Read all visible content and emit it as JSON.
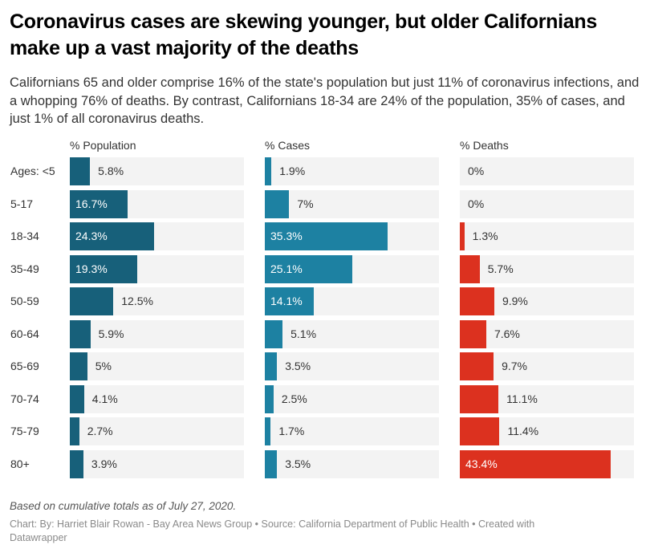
{
  "header": {
    "title": "Coronavirus cases are skewing younger, but older Californians make up a vast majority of the deaths",
    "subtitle": "Californians 65 and older comprise 16% of the state's population but just 11% of coronavirus infections, and a whopping 76% of deaths. By contrast, Californians 18-34 are 24% of the population, 35% of cases, and just 1% of all coronavirus deaths."
  },
  "chart_data": {
    "type": "bar",
    "orientation": "horizontal",
    "title": "Coronavirus cases are skewing younger, but older Californians make up a vast majority of the deaths",
    "categories": [
      "Ages: <5",
      "5-17",
      "18-34",
      "35-49",
      "50-59",
      "60-64",
      "65-69",
      "70-74",
      "75-79",
      "80+"
    ],
    "xlim": [
      0,
      50
    ],
    "grid": false,
    "legend": "none",
    "series": [
      {
        "name": "% Population",
        "color": "#17607a",
        "values": [
          5.8,
          16.7,
          24.3,
          19.3,
          12.5,
          5.9,
          5,
          4.1,
          2.7,
          3.9
        ],
        "labels": [
          "5.8%",
          "16.7%",
          "24.3%",
          "19.3%",
          "12.5%",
          "5.9%",
          "5%",
          "4.1%",
          "2.7%",
          "3.9%"
        ],
        "label_inside": [
          false,
          true,
          true,
          true,
          false,
          false,
          false,
          false,
          false,
          false
        ]
      },
      {
        "name": "% Cases",
        "color": "#1d81a2",
        "values": [
          1.9,
          7,
          35.3,
          25.1,
          14.1,
          5.1,
          3.5,
          2.5,
          1.7,
          3.5
        ],
        "labels": [
          "1.9%",
          "7%",
          "35.3%",
          "25.1%",
          "14.1%",
          "5.1%",
          "3.5%",
          "2.5%",
          "1.7%",
          "3.5%"
        ],
        "label_inside": [
          false,
          false,
          true,
          true,
          true,
          false,
          false,
          false,
          false,
          false
        ]
      },
      {
        "name": "% Deaths",
        "color": "#dc311f",
        "values": [
          0,
          0,
          1.3,
          5.7,
          9.9,
          7.6,
          9.7,
          11.1,
          11.4,
          43.4
        ],
        "labels": [
          "0%",
          "0%",
          "1.3%",
          "5.7%",
          "9.9%",
          "7.6%",
          "9.7%",
          "11.1%",
          "11.4%",
          "43.4%"
        ],
        "label_inside": [
          false,
          false,
          false,
          false,
          false,
          false,
          false,
          false,
          false,
          true
        ]
      }
    ]
  },
  "footer": {
    "notes": "Based on cumulative totals as of July 27, 2020.",
    "byline": "Chart: By: Harriet Blair Rowan - Bay Area News Group • Source: California Department of Public Health • Created with Datawrapper"
  }
}
